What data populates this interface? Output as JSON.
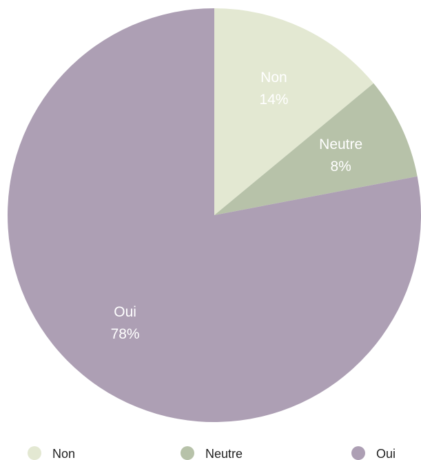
{
  "chart_data": {
    "type": "pie",
    "categories": [
      "Non",
      "Neutre",
      "Oui"
    ],
    "values": [
      14,
      8,
      78
    ],
    "value_labels": [
      "14%",
      "8%",
      "78%"
    ],
    "colors": [
      "#e3e8d2",
      "#b7c2a9",
      "#ad9fb4"
    ],
    "legend": "bottom"
  }
}
